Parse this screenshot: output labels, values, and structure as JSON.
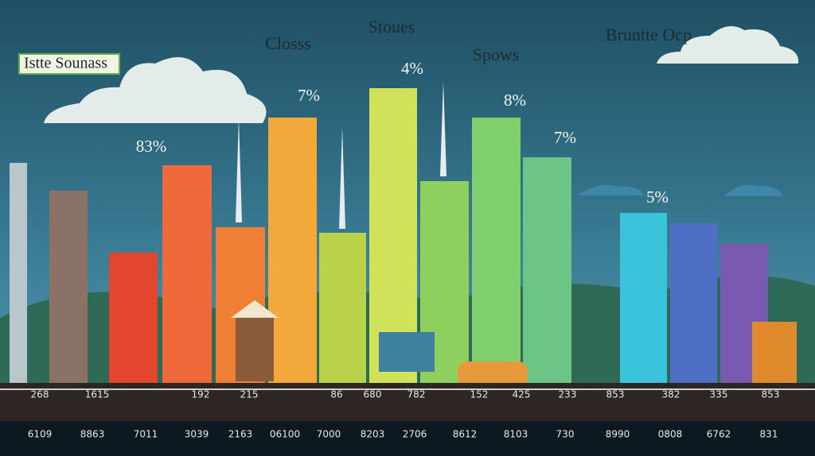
{
  "headings": {
    "tag": "Istte Sounass",
    "closs": "Closss",
    "stoues": "Stoues",
    "spows": "Spows",
    "corner": "Bruntte Ocp"
  },
  "bar_labels": [
    "83%",
    "7%",
    "4%",
    "8%",
    "7%",
    "5%"
  ],
  "row_1": [
    "268",
    "1615",
    "192",
    "215",
    "86",
    "680",
    "782",
    "152",
    "425",
    "233",
    "853",
    "382",
    "335",
    "853"
  ],
  "row_2": [
    "6109",
    "8863",
    "7011",
    "3039",
    "2163",
    "06100",
    "7000",
    "8203",
    "2706",
    "8612",
    "8103",
    "730",
    "8990",
    "0808",
    "6762",
    "831"
  ]
}
